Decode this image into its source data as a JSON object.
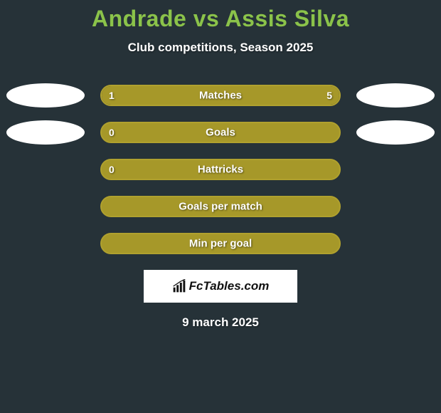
{
  "title": "Andrade vs Assis Silva",
  "title_color": "#8BC34A",
  "subtitle": "Club competitions, Season 2025",
  "background_color": "#263238",
  "bar_border_color": "#B0A12E",
  "bar_fill_color": "#A69829",
  "stats": [
    {
      "label": "Matches",
      "left_value": "1",
      "right_value": "5",
      "left_pct": 17,
      "right_pct": 83,
      "show_oval_left": true,
      "show_oval_right": true,
      "bar_background": "#263238"
    },
    {
      "label": "Goals",
      "left_value": "0",
      "right_value": "",
      "left_pct": 0,
      "right_pct": 100,
      "show_oval_left": true,
      "show_oval_right": true,
      "bar_background": "#A69829"
    },
    {
      "label": "Hattricks",
      "left_value": "0",
      "right_value": "",
      "left_pct": 0,
      "right_pct": 100,
      "show_oval_left": false,
      "show_oval_right": false,
      "bar_background": "#A69829"
    },
    {
      "label": "Goals per match",
      "left_value": "",
      "right_value": "",
      "left_pct": 0,
      "right_pct": 100,
      "show_oval_left": false,
      "show_oval_right": false,
      "bar_background": "#A69829"
    },
    {
      "label": "Min per goal",
      "left_value": "",
      "right_value": "",
      "left_pct": 0,
      "right_pct": 100,
      "show_oval_left": false,
      "show_oval_right": false,
      "bar_background": "#A69829"
    }
  ],
  "brand": {
    "label": "FcTables.com",
    "icon_color": "#111111",
    "background": "#ffffff"
  },
  "date": "9 march 2025"
}
